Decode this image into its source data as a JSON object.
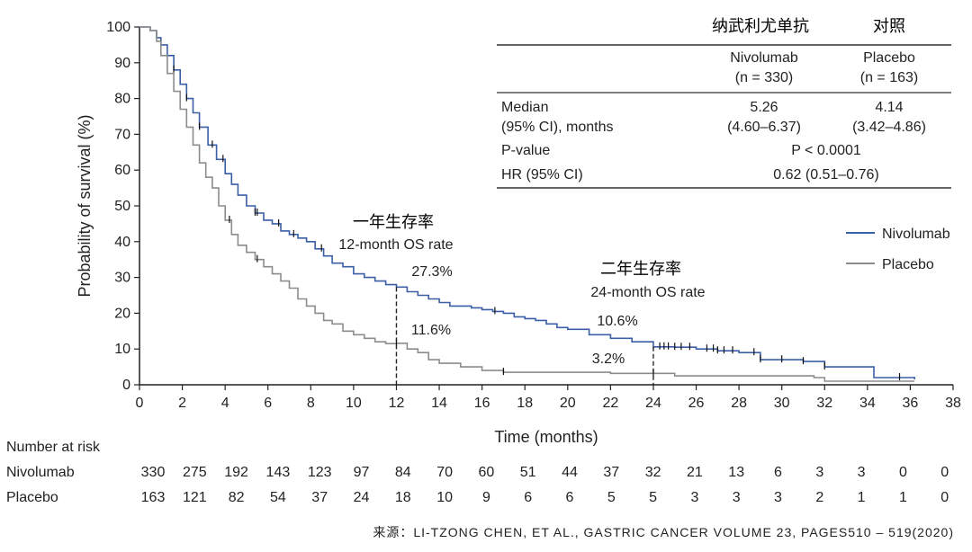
{
  "chart_data": {
    "type": "line",
    "xlabel": "Time (months)",
    "ylabel": "Probability of survival (%)",
    "xlim": [
      0,
      38
    ],
    "ylim": [
      0,
      100
    ],
    "xticks": [
      "0",
      "2",
      "4",
      "6",
      "8",
      "10",
      "12",
      "14",
      "16",
      "18",
      "20",
      "22",
      "24",
      "26",
      "28",
      "30",
      "32",
      "34",
      "36",
      "38"
    ],
    "yticks": [
      "0",
      "10",
      "20",
      "30",
      "40",
      "50",
      "60",
      "70",
      "80",
      "90",
      "100"
    ],
    "grid": false,
    "legend_position": "right",
    "series": [
      {
        "name": "Nivolumab",
        "color": "#3a5fa6",
        "x": [
          0,
          0.5,
          0.8,
          1,
          1.3,
          1.6,
          1.9,
          2.2,
          2.5,
          2.8,
          3.2,
          3.6,
          4.0,
          4.3,
          4.6,
          5.0,
          5.4,
          5.8,
          6.2,
          6.6,
          7.0,
          7.4,
          7.8,
          8.2,
          8.6,
          9.0,
          9.5,
          10,
          10.5,
          11,
          11.5,
          12,
          12.5,
          13,
          13.5,
          14,
          14.5,
          15,
          15.5,
          16,
          16.5,
          17,
          17.5,
          18,
          18.5,
          19,
          19.5,
          20,
          21,
          22,
          23,
          24,
          25,
          26,
          27,
          28,
          29,
          30,
          31,
          32,
          33,
          34.3,
          34.3,
          35,
          36.2
        ],
        "y": [
          100,
          99,
          97,
          95,
          92,
          88,
          84,
          80,
          76,
          72,
          67,
          63,
          59,
          56,
          53,
          50,
          48,
          46,
          45,
          43,
          42,
          41,
          40,
          38,
          36,
          34,
          33,
          31,
          30,
          29,
          28,
          27.3,
          26,
          25,
          24,
          23,
          22,
          22,
          21.5,
          21,
          20.5,
          20,
          19,
          18.5,
          18,
          17,
          16,
          15.5,
          14,
          13,
          12,
          10.6,
          10.5,
          10,
          9.5,
          9,
          7,
          7,
          6.5,
          5,
          5,
          5,
          2,
          2,
          1.5
        ],
        "censor_x": [
          1.0,
          1.6,
          2.2,
          2.8,
          3.4,
          3.9,
          5.4,
          5.5,
          6.5,
          7.2,
          8.5,
          16.6,
          24.3,
          24.5,
          24.7,
          25.0,
          25.3,
          25.7,
          26.5,
          26.8,
          27.0,
          27.3,
          27.7,
          28.7,
          29.0,
          30.0,
          31.0,
          32.0,
          35.5
        ]
      },
      {
        "name": "Placebo",
        "color": "#8c8c8c",
        "x": [
          0,
          0.5,
          0.8,
          1,
          1.3,
          1.6,
          1.9,
          2.2,
          2.5,
          2.8,
          3.1,
          3.4,
          3.7,
          4.0,
          4.3,
          4.6,
          5.0,
          5.4,
          5.8,
          6.2,
          6.6,
          7.0,
          7.4,
          7.8,
          8.2,
          8.6,
          9.0,
          9.5,
          10,
          10.5,
          11,
          11.5,
          12,
          12.5,
          13,
          13.5,
          14,
          15,
          16,
          17,
          18,
          19,
          20,
          21,
          22,
          23,
          24,
          25,
          26,
          27,
          28,
          30,
          31.5,
          32,
          34,
          36.2
        ],
        "y": [
          100,
          99,
          96,
          92,
          87,
          82,
          77,
          72,
          67,
          62,
          58,
          55,
          50,
          46,
          42,
          39,
          37,
          35,
          33,
          31,
          29,
          27,
          24,
          22,
          20,
          18,
          17,
          15,
          14,
          13,
          12,
          11.5,
          11.6,
          10,
          9,
          7,
          6,
          5,
          4,
          3.5,
          3.5,
          3.5,
          3.5,
          3.5,
          3.2,
          3.2,
          3.2,
          2.5,
          2.5,
          2.5,
          2.5,
          2.5,
          2,
          1,
          1,
          1
        ],
        "censor_x": [
          4.2,
          5.5,
          12.0,
          17.0,
          24.0
        ]
      }
    ],
    "annotations": [
      {
        "id": "one_year",
        "x": 12,
        "cn": "一年生存率",
        "en": "12-month OS rate",
        "nivolumab": "27.3%",
        "placebo": "11.6%",
        "y_top": 27.3
      },
      {
        "id": "two_year",
        "x": 24,
        "cn": "二年生存率",
        "en": "24-month OS rate",
        "nivolumab": "10.6%",
        "placebo": "3.2%",
        "y_top": 10.6
      }
    ]
  },
  "table": {
    "cn_headers": [
      "纳武利尤单抗",
      "对照"
    ],
    "col1_name": "Nivolumab",
    "col1_n": "(n = 330)",
    "col2_name": "Placebo",
    "col2_n": "(n = 163)",
    "median_label": "Median",
    "median_label2": "(95% CI), months",
    "median_niv": "5.26",
    "median_niv_ci": "(4.60–6.37)",
    "median_pla": "4.14",
    "median_pla_ci": "(3.42–4.86)",
    "pvalue_label": "P-value",
    "pvalue": "P < 0.0001",
    "hr_label": "HR (95% CI)",
    "hr": "0.62 (0.51–0.76)"
  },
  "legend": {
    "nivolumab": "Nivolumab",
    "placebo": "Placebo"
  },
  "risk": {
    "title": "Number at risk",
    "rows": [
      {
        "label": "Nivolumab",
        "values": [
          "330",
          "275",
          "192",
          "143",
          "123",
          "97",
          "84",
          "70",
          "60",
          "51",
          "44",
          "37",
          "32",
          "21",
          "13",
          "6",
          "3",
          "3",
          "0",
          "0"
        ]
      },
      {
        "label": "Placebo",
        "values": [
          "163",
          "121",
          "82",
          "54",
          "37",
          "24",
          "18",
          "10",
          "9",
          "6",
          "6",
          "5",
          "5",
          "3",
          "3",
          "3",
          "2",
          "1",
          "1",
          "0"
        ]
      }
    ]
  },
  "source": "来源：LI-TZONG CHEN, ET AL., GASTRIC CANCER VOLUME 23, PAGES510 – 519(2020)"
}
